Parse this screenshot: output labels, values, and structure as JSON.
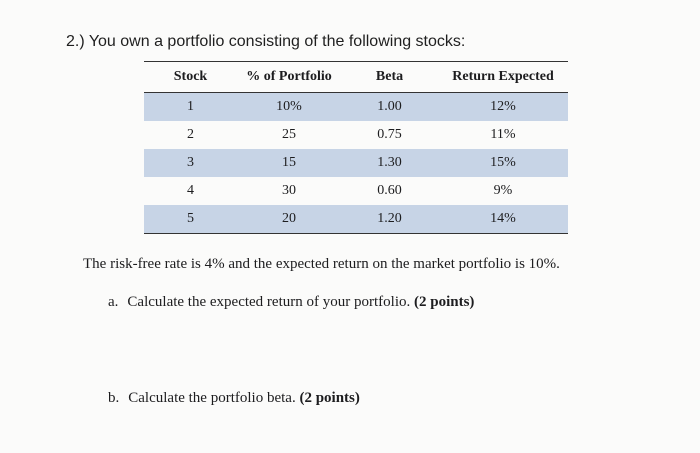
{
  "question": {
    "title": "2.) You own a portfolio consisting of the following stocks:"
  },
  "table": {
    "headers": [
      "Stock",
      "% of Portfolio",
      "Beta",
      "Return Expected"
    ],
    "rows": [
      {
        "stock": "1",
        "pct": "10%",
        "beta": "1.00",
        "ret": "12%"
      },
      {
        "stock": "2",
        "pct": "25",
        "beta": "0.75",
        "ret": "11%"
      },
      {
        "stock": "3",
        "pct": "15",
        "beta": "1.30",
        "ret": "15%"
      },
      {
        "stock": "4",
        "pct": "30",
        "beta": "0.60",
        "ret": "9%"
      },
      {
        "stock": "5",
        "pct": "20",
        "beta": "1.20",
        "ret": "14%"
      }
    ],
    "shade_color": "#c7d4e6"
  },
  "info": "The risk-free rate is 4% and the expected return on the market portfolio is 10%.",
  "parts": {
    "a": {
      "letter": "a.",
      "text": "Calculate the expected return of your portfolio.",
      "points": "(2 points)"
    },
    "b": {
      "letter": "b.",
      "text": "Calculate the portfolio beta.",
      "points": "(2 points)"
    }
  }
}
